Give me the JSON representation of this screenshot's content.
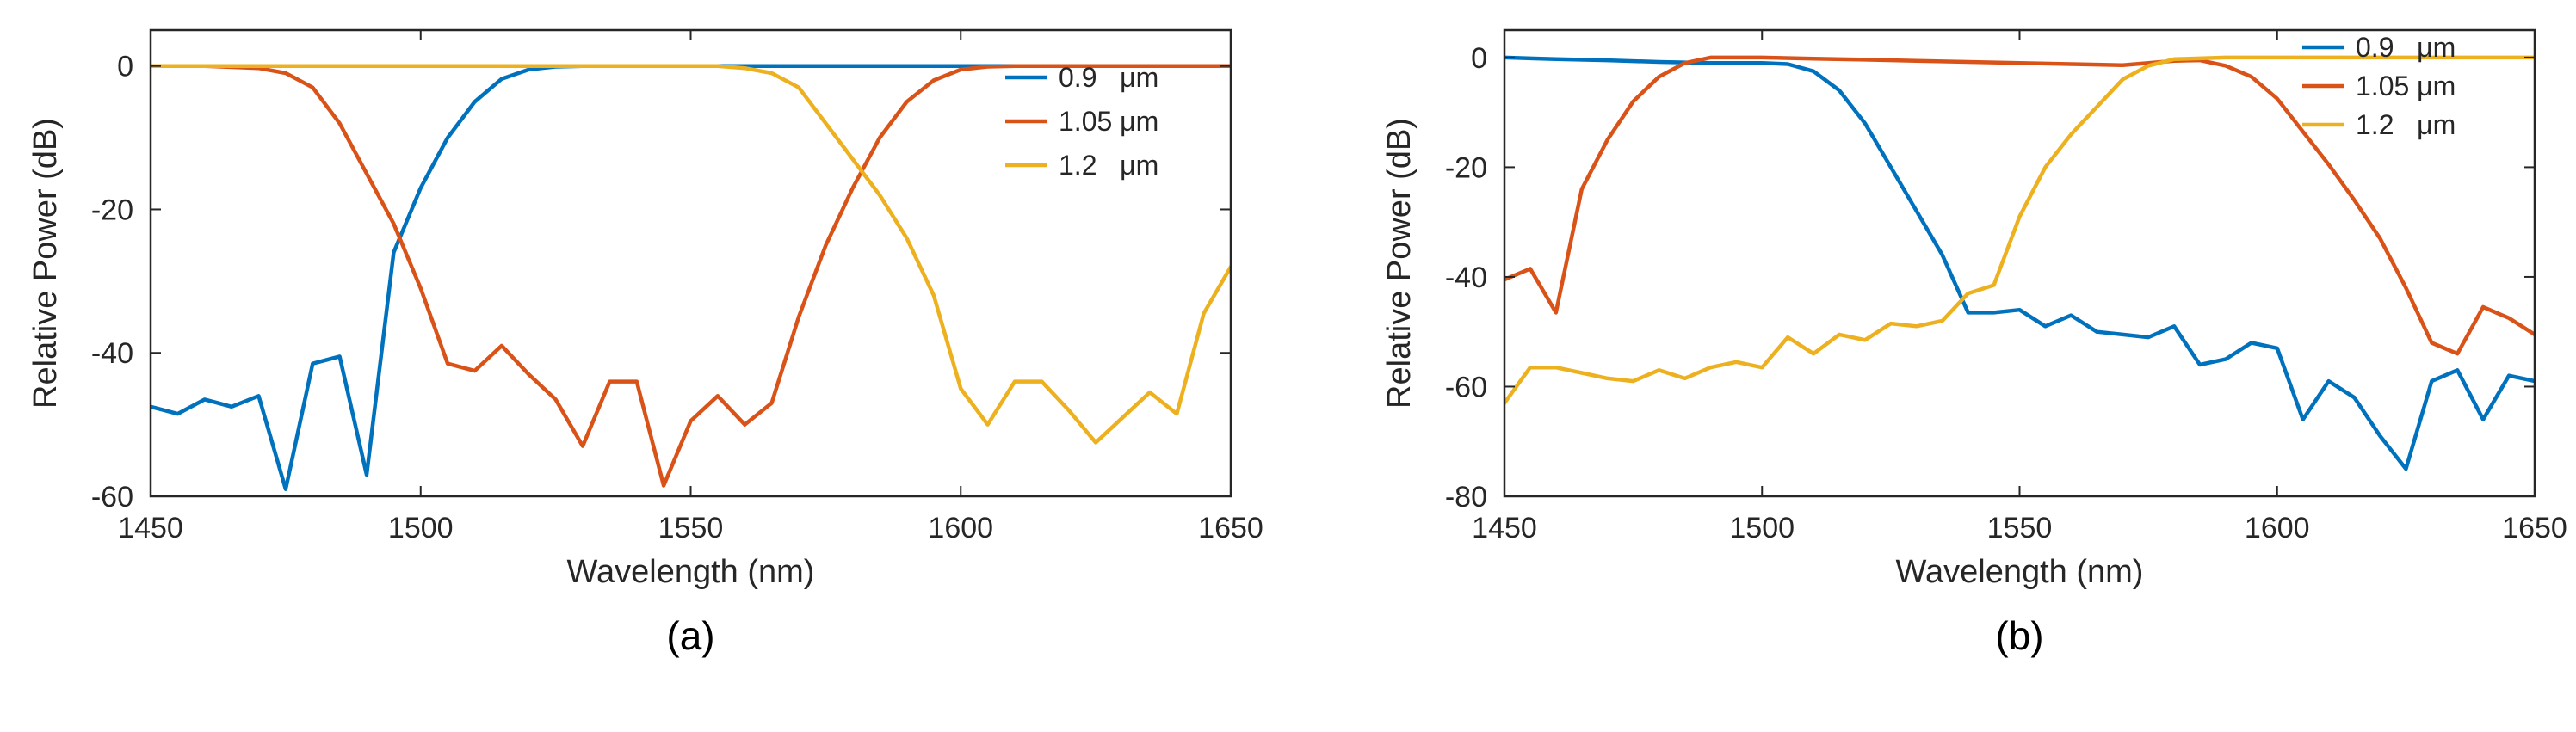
{
  "chart_data": [
    {
      "type": "line",
      "panel_label": "(a)",
      "xlabel": "Wavelength (nm)",
      "ylabel": "Relative Power (dB)",
      "xlim": [
        1450,
        1650
      ],
      "ylim": [
        -60,
        5
      ],
      "xticks": [
        1450,
        1500,
        1550,
        1600,
        1650
      ],
      "yticks": [
        -60,
        -40,
        -20,
        0
      ],
      "legend_position": "top-right",
      "series": [
        {
          "name": "0.9   μm",
          "color": "#0072BD",
          "x": [
            1450,
            1455,
            1460,
            1465,
            1470,
            1475,
            1480,
            1485,
            1490,
            1495,
            1500,
            1505,
            1510,
            1515,
            1520,
            1525,
            1530,
            1540,
            1550,
            1560,
            1570,
            1580,
            1590,
            1600,
            1610,
            1620,
            1630,
            1640,
            1650
          ],
          "y": [
            -47.5,
            -48.5,
            -46.5,
            -47.5,
            -46,
            -59,
            -41.5,
            -40.5,
            -57,
            -26,
            -17,
            -10,
            -5,
            -1.8,
            -0.5,
            -0.1,
            0,
            0,
            0,
            0,
            0,
            0,
            0,
            0,
            0,
            0,
            0,
            0,
            0
          ]
        },
        {
          "name": "1.05 μm",
          "color": "#D95319",
          "x": [
            1450,
            1460,
            1470,
            1475,
            1480,
            1485,
            1490,
            1495,
            1500,
            1505,
            1510,
            1515,
            1520,
            1525,
            1530,
            1535,
            1540,
            1545,
            1550,
            1555,
            1560,
            1565,
            1570,
            1575,
            1580,
            1585,
            1590,
            1595,
            1600,
            1605,
            1610,
            1620,
            1630,
            1640,
            1650
          ],
          "y": [
            0,
            0,
            -0.3,
            -1,
            -3,
            -8,
            -15,
            -22,
            -31,
            -41.5,
            -42.5,
            -39,
            -43,
            -46.5,
            -53,
            -44,
            -44,
            -58.5,
            -49.5,
            -46,
            -50,
            -47,
            -35,
            -25,
            -17,
            -10,
            -5,
            -2,
            -0.5,
            -0.1,
            0,
            0,
            0,
            0,
            0
          ]
        },
        {
          "name": "1.2   μm",
          "color": "#EDB120",
          "x": [
            1450,
            1460,
            1470,
            1480,
            1490,
            1500,
            1510,
            1520,
            1530,
            1540,
            1550,
            1555,
            1560,
            1565,
            1570,
            1575,
            1580,
            1585,
            1590,
            1595,
            1600,
            1605,
            1610,
            1615,
            1620,
            1625,
            1630,
            1635,
            1640,
            1645,
            1650
          ],
          "y": [
            0,
            0,
            0,
            0,
            0,
            0,
            0,
            0,
            0,
            0,
            0,
            0,
            -0.3,
            -1,
            -3,
            -8,
            -13,
            -18,
            -24,
            -32,
            -45,
            -50,
            -44,
            -44,
            -48,
            -52.5,
            -49,
            -45.5,
            -48.5,
            -34.5,
            -28
          ]
        }
      ]
    },
    {
      "type": "line",
      "panel_label": "(b)",
      "xlabel": "Wavelength (nm)",
      "ylabel": "Relative Power (dB)",
      "xlim": [
        1450,
        1650
      ],
      "ylim": [
        -80,
        5
      ],
      "xticks": [
        1450,
        1500,
        1550,
        1600,
        1650
      ],
      "yticks": [
        -80,
        -60,
        -40,
        -20,
        0
      ],
      "legend_position": "top-right",
      "series": [
        {
          "name": "0.9   μm",
          "color": "#0072BD",
          "x": [
            1450,
            1460,
            1470,
            1480,
            1490,
            1500,
            1505,
            1510,
            1515,
            1520,
            1525,
            1530,
            1535,
            1540,
            1545,
            1550,
            1555,
            1560,
            1565,
            1570,
            1575,
            1580,
            1585,
            1590,
            1595,
            1600,
            1605,
            1610,
            1615,
            1620,
            1625,
            1630,
            1635,
            1640,
            1645,
            1650
          ],
          "y": [
            0,
            -0.3,
            -0.5,
            -0.8,
            -1,
            -1,
            -1.2,
            -2.5,
            -6,
            -12,
            -20,
            -28,
            -36,
            -46.5,
            -46.5,
            -46,
            -49,
            -47,
            -50,
            -50.5,
            -51,
            -49,
            -56,
            -55,
            -52,
            -53,
            -66,
            -59,
            -62,
            -69,
            -75,
            -59,
            -57,
            -66,
            -58,
            -59
          ]
        },
        {
          "name": "1.05 μm",
          "color": "#D95319",
          "x": [
            1450,
            1455,
            1460,
            1465,
            1470,
            1475,
            1480,
            1485,
            1490,
            1495,
            1500,
            1510,
            1520,
            1530,
            1540,
            1550,
            1560,
            1570,
            1580,
            1585,
            1590,
            1595,
            1600,
            1605,
            1610,
            1615,
            1620,
            1625,
            1630,
            1635,
            1640,
            1645,
            1650
          ],
          "y": [
            -40.5,
            -38.5,
            -46.5,
            -24,
            -15,
            -8,
            -3.5,
            -1,
            0,
            0,
            0,
            -0.2,
            -0.4,
            -0.6,
            -0.8,
            -1,
            -1.2,
            -1.4,
            -0.6,
            -0.5,
            -1.5,
            -3.5,
            -7.5,
            -13.5,
            -19.5,
            -26,
            -33,
            -42,
            -52,
            -54,
            -45.5,
            -47.5,
            -50.5
          ]
        },
        {
          "name": "1.2   μm",
          "color": "#EDB120",
          "x": [
            1450,
            1455,
            1460,
            1465,
            1470,
            1475,
            1480,
            1485,
            1490,
            1495,
            1500,
            1505,
            1510,
            1515,
            1520,
            1525,
            1530,
            1535,
            1540,
            1545,
            1550,
            1555,
            1560,
            1565,
            1570,
            1575,
            1580,
            1590,
            1600,
            1610,
            1620,
            1630,
            1640,
            1650
          ],
          "y": [
            -63,
            -56.5,
            -56.5,
            -57.5,
            -58.5,
            -59,
            -57,
            -58.5,
            -56.5,
            -55.5,
            -56.5,
            -51,
            -54,
            -50.5,
            -51.5,
            -48.5,
            -49,
            -48,
            -43,
            -41.5,
            -29,
            -20,
            -14,
            -9,
            -4,
            -1.5,
            -0.3,
            0,
            0,
            0,
            0,
            0,
            0,
            0
          ]
        }
      ]
    }
  ]
}
